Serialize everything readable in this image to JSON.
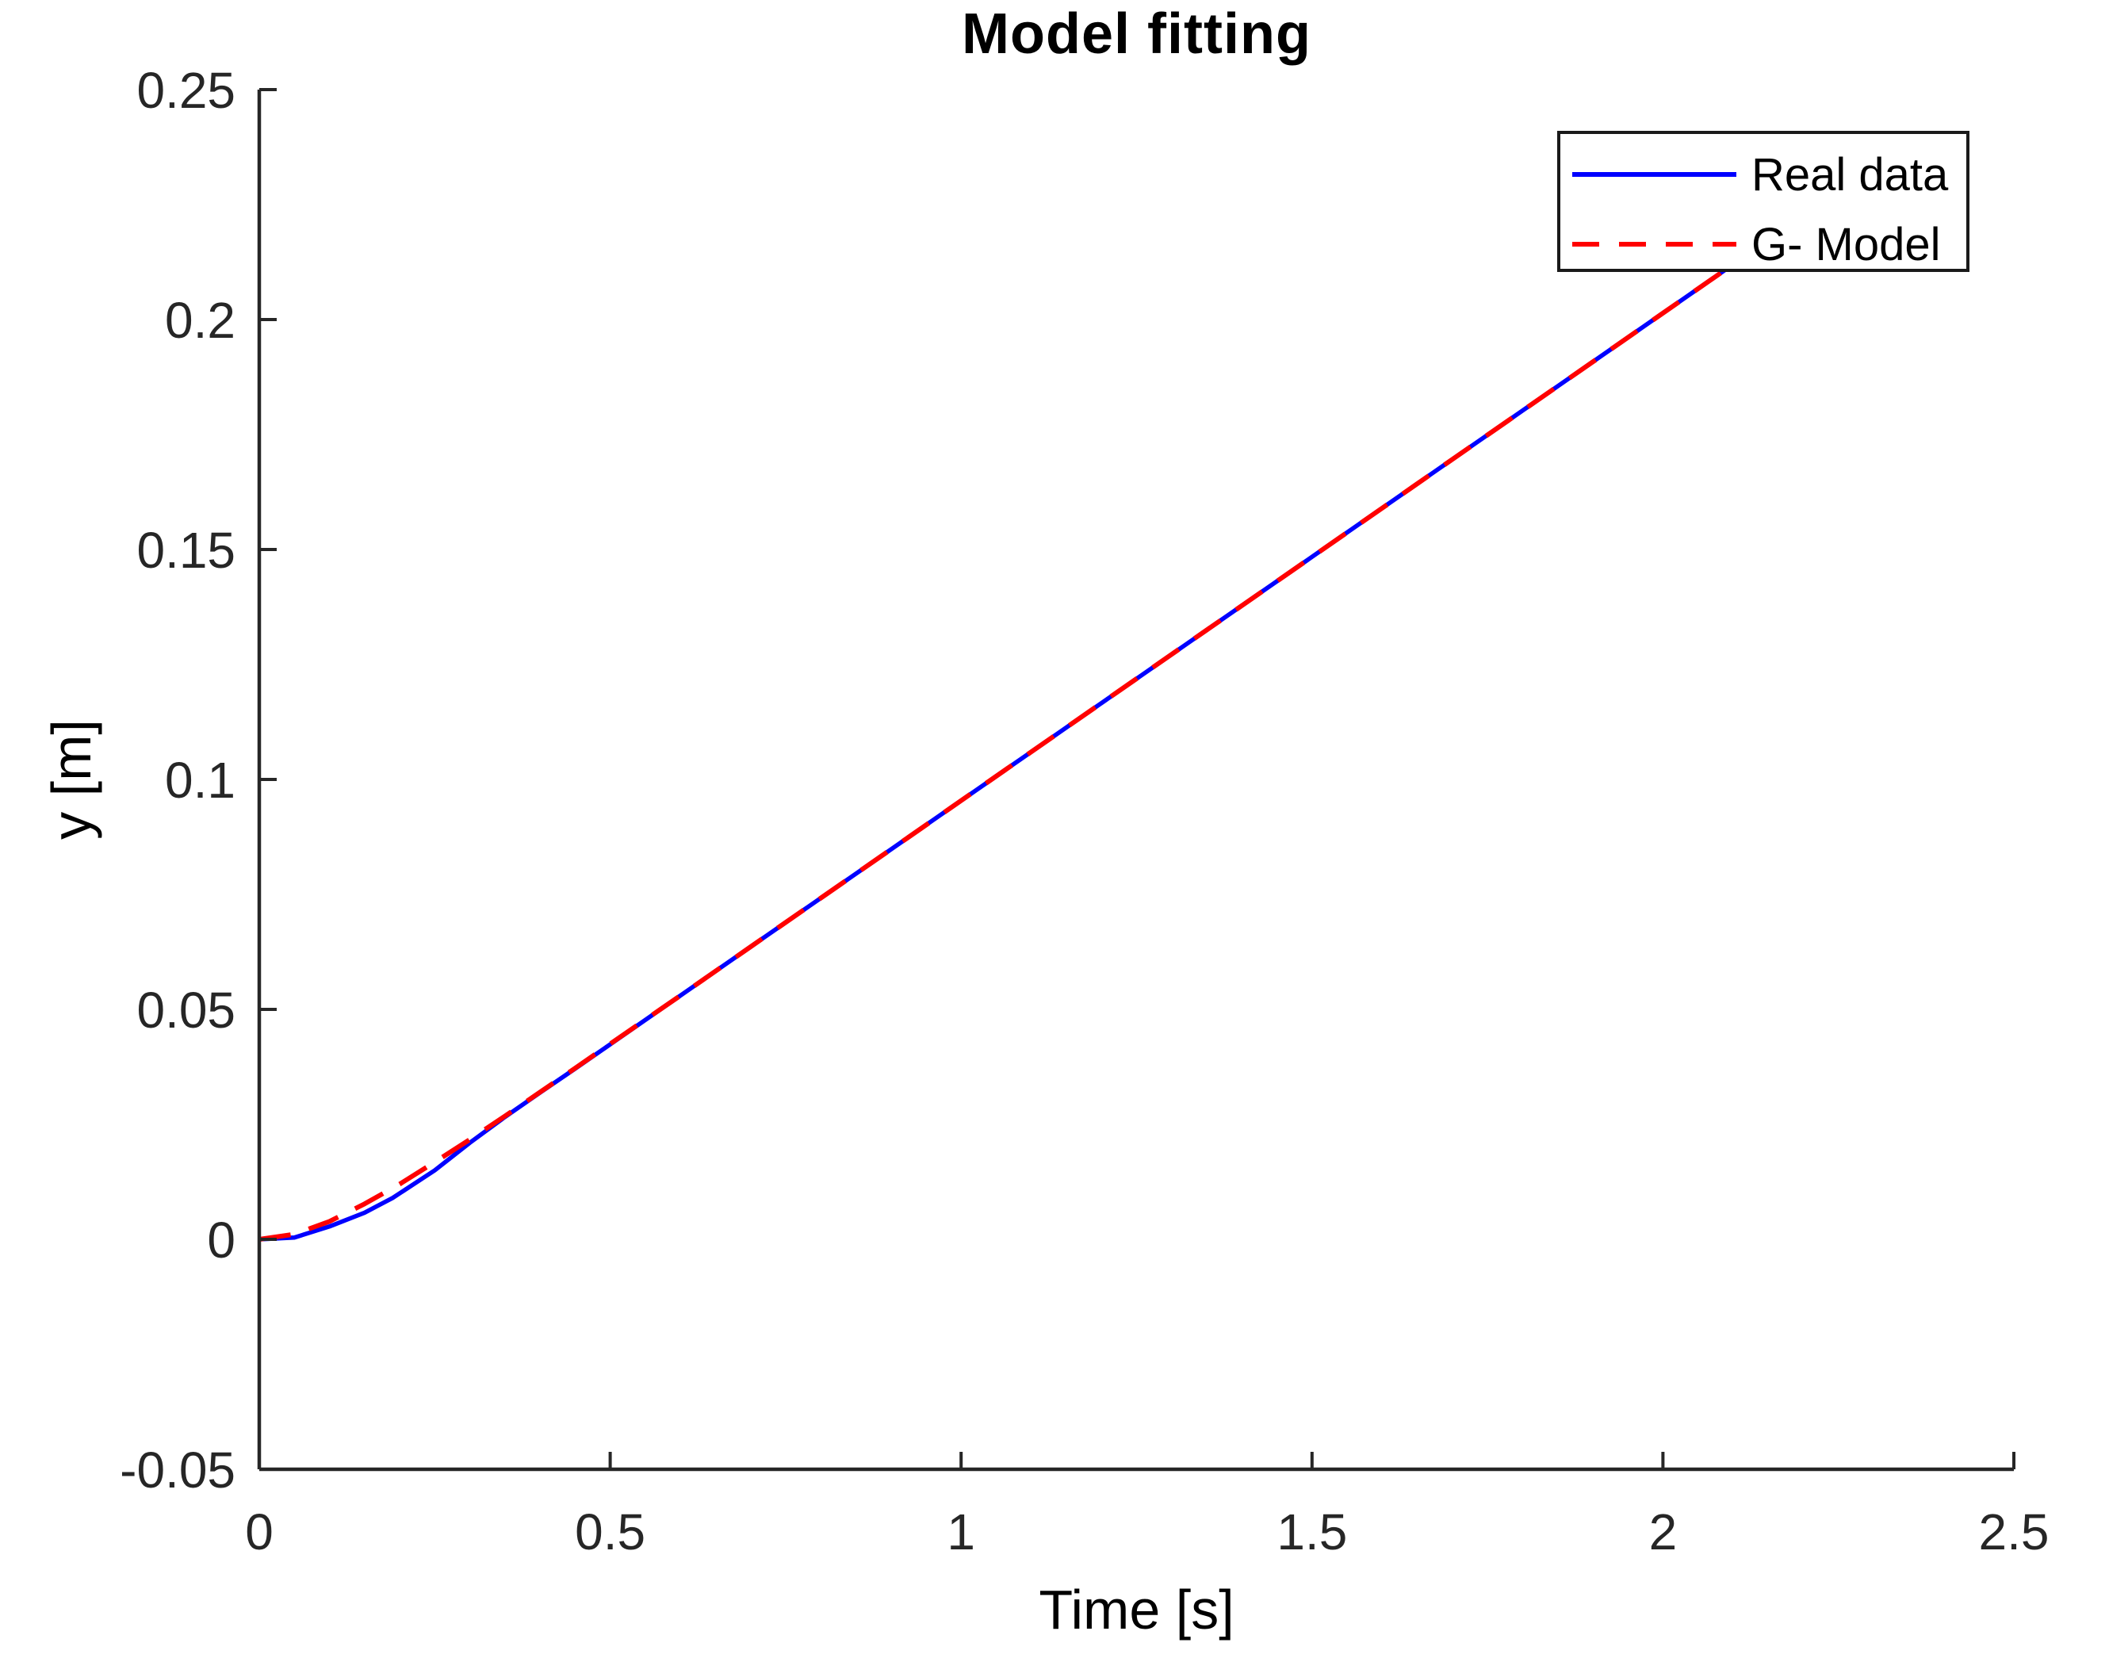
{
  "figure": {
    "title": "Model fitting",
    "xlabel": "Time [s]",
    "ylabel": "y [m]"
  },
  "legend": {
    "position": "northeast",
    "items": [
      {
        "label": "Real data",
        "color": "#0000FF",
        "line_style": "solid"
      },
      {
        "label": "G- Model",
        "color": "#FF0000",
        "line_style": "dashed"
      }
    ]
  },
  "colors": {
    "real_data_line": "#0000FF",
    "model_line": "#FF0000",
    "axis": "#262626",
    "text": "#000000",
    "background": "#FFFFFF"
  },
  "chart_data": {
    "type": "line",
    "title": "Model fitting",
    "xlabel": "Time [s]",
    "ylabel": "y [m]",
    "xlim": [
      0,
      2.5
    ],
    "ylim": [
      -0.05,
      0.25
    ],
    "x_ticks": [
      0,
      0.5,
      1,
      1.5,
      2,
      2.5
    ],
    "x_tick_labels": [
      "0",
      "0.5",
      "1",
      "1.5",
      "2",
      "2.5"
    ],
    "y_ticks": [
      -0.05,
      0,
      0.05,
      0.1,
      0.15,
      0.2,
      0.25
    ],
    "y_tick_labels": [
      "-0.05",
      "0",
      "0.05",
      "0.1",
      "0.15",
      "0.2",
      "0.25"
    ],
    "grid": false,
    "box": false,
    "tick_direction": "in",
    "legend_position": "northeast",
    "series": [
      {
        "name": "Real data",
        "color": "#0000FF",
        "style": "solid",
        "width": 5.5,
        "x": [
          0,
          0.05,
          0.1,
          0.15,
          0.19,
          0.25,
          0.3,
          0.35,
          0.4,
          0.45,
          0.5,
          0.6,
          0.7,
          0.8,
          0.9,
          1.0,
          1.1,
          1.2,
          1.3,
          1.4,
          1.5,
          1.6,
          1.7,
          1.8,
          1.9,
          2.0,
          2.1,
          2.15
        ],
        "y": [
          0,
          0.0004,
          0.0028,
          0.0058,
          0.009,
          0.015,
          0.021,
          0.0266,
          0.0319,
          0.0371,
          0.0424,
          0.053,
          0.0636,
          0.0742,
          0.0848,
          0.0954,
          0.106,
          0.1166,
          0.1272,
          0.1378,
          0.1484,
          0.159,
          0.1696,
          0.1802,
          0.1908,
          0.2014,
          0.212,
          0.2173
        ]
      },
      {
        "name": "G- Model",
        "color": "#FF0000",
        "style": "dashed",
        "width": 6,
        "dash": [
          40,
          24
        ],
        "x": [
          0,
          0.05,
          0.1,
          0.15,
          0.2,
          0.25,
          0.3,
          0.35,
          0.4,
          0.45,
          0.5,
          0.6,
          0.7,
          0.8,
          0.9,
          1.0,
          1.1,
          1.2,
          1.3,
          1.4,
          1.5,
          1.6,
          1.7,
          1.8,
          1.9,
          2.0,
          2.1,
          2.15
        ],
        "y": [
          0,
          0.0011,
          0.0039,
          0.0077,
          0.012,
          0.0168,
          0.0217,
          0.0268,
          0.032,
          0.0372,
          0.0425,
          0.053,
          0.0636,
          0.0742,
          0.0848,
          0.0954,
          0.106,
          0.1166,
          0.1272,
          0.1378,
          0.1484,
          0.159,
          0.1696,
          0.1802,
          0.1908,
          0.2014,
          0.212,
          0.2173
        ]
      }
    ]
  }
}
